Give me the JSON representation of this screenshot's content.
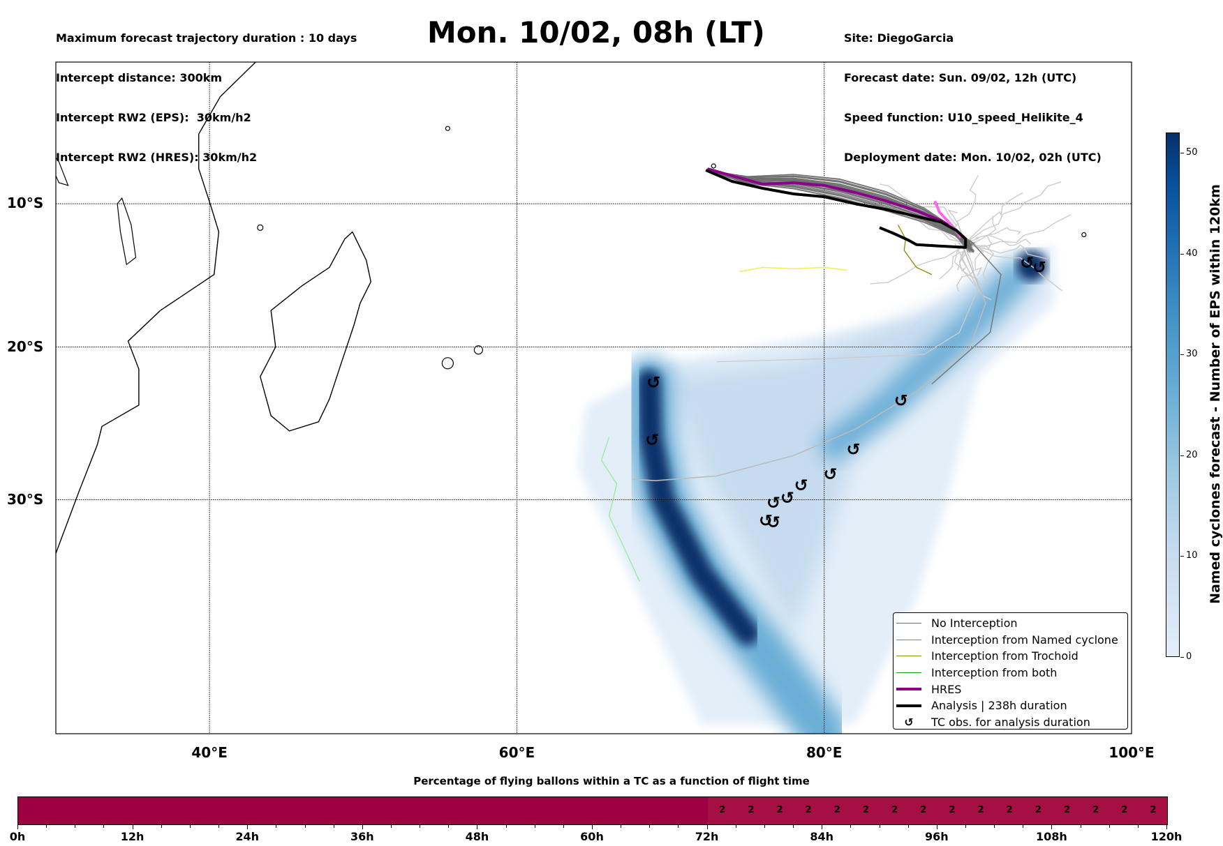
{
  "header": {
    "left_lines": [
      "Maximum forecast trajectory duration : 10 days",
      "Intercept distance: 300km",
      "Intercept RW2 (EPS):  30km/h2",
      "Intercept RW2 (HRES): 30km/h2"
    ],
    "title": "Mon. 10/02, 08h (LT)",
    "right_lines": [
      "Site: DiegoGarcia",
      "Forecast date: Sun. 09/02, 12h (UTC)",
      "Speed function: U10_speed_Helikite_4",
      "Deployment date: Mon. 10/02, 02h (UTC)"
    ]
  },
  "map": {
    "lon_range": [
      30,
      100
    ],
    "lat_range": [
      -43.5,
      0.2
    ],
    "lon_ticks": [
      {
        "value": 40,
        "label": "40°E"
      },
      {
        "value": 60,
        "label": "60°E"
      },
      {
        "value": 80,
        "label": "80°E"
      },
      {
        "value": 100,
        "label": "100°E"
      }
    ],
    "lat_ticks": [
      {
        "value": -10,
        "label": "10°S"
      },
      {
        "value": -20,
        "label": "20°S"
      },
      {
        "value": -30,
        "label": "30°S"
      }
    ],
    "colors": {
      "no_interception": "#6e6e6e",
      "named_cyclone": "#ff5a1f",
      "trochoid": "#8b8b00",
      "both": "#1a9e1a",
      "hres": "#8b008b",
      "hres_tail": "#ff66ee",
      "analysis": "#000000",
      "faint_tracks": "#cccccc",
      "yellow_track": "#eeee55",
      "green_track": "#99ee99"
    },
    "tc_obs": [
      {
        "lon": 68.9,
        "lat": -22.4
      },
      {
        "lon": 68.8,
        "lat": -26.2
      },
      {
        "lon": 76.2,
        "lat": -31.3
      },
      {
        "lon": 76.7,
        "lat": -31.4
      },
      {
        "lon": 76.7,
        "lat": -30.2
      },
      {
        "lon": 77.6,
        "lat": -29.9
      },
      {
        "lon": 78.5,
        "lat": -29.1
      },
      {
        "lon": 80.4,
        "lat": -28.4
      },
      {
        "lon": 81.9,
        "lat": -26.8
      },
      {
        "lon": 85.0,
        "lat": -23.6
      },
      {
        "lon": 93.2,
        "lat": -14.2
      },
      {
        "lon": 94.0,
        "lat": -14.5
      }
    ],
    "analysis_track": [
      [
        72.3,
        -7.6
      ],
      [
        74,
        -8.4
      ],
      [
        76,
        -8.9
      ],
      [
        78,
        -9.3
      ],
      [
        80,
        -9.5
      ],
      [
        82,
        -10
      ],
      [
        84,
        -10.4
      ],
      [
        86,
        -10.9
      ],
      [
        87.6,
        -11.3
      ],
      [
        88.6,
        -11.9
      ],
      [
        89.2,
        -12.5
      ],
      [
        89.2,
        -13.1
      ],
      [
        87.5,
        -13
      ],
      [
        86,
        -12.9
      ],
      [
        85.5,
        -12.6
      ],
      [
        84.5,
        -12.1
      ],
      [
        83.6,
        -11.7
      ]
    ],
    "hres_track": [
      [
        72.4,
        -7.5
      ],
      [
        74,
        -8
      ],
      [
        76,
        -8.6
      ],
      [
        78,
        -8.5
      ],
      [
        80,
        -8.7
      ],
      [
        82,
        -9.2
      ],
      [
        84,
        -9.8
      ],
      [
        86,
        -10.5
      ],
      [
        87.6,
        -11.2
      ],
      [
        88.5,
        -11.8
      ],
      [
        89,
        -12.3
      ]
    ],
    "hres_tail": [
      [
        87.2,
        -9.8
      ],
      [
        87.5,
        -10.6
      ],
      [
        88.1,
        -11.3
      ],
      [
        88.5,
        -11.8
      ],
      [
        88.9,
        -12.4
      ]
    ],
    "legend": [
      {
        "label": "No Interception",
        "style": "no_interception"
      },
      {
        "label": "Interception from Named cyclone",
        "style": "named_cyclone"
      },
      {
        "label": "Interception from Trochoid",
        "style": "trochoid"
      },
      {
        "label": "Interception from both",
        "style": "both"
      },
      {
        "label": "HRES",
        "style": "hres"
      },
      {
        "label": "Analysis | 238h duration",
        "style": "analysis"
      },
      {
        "label": "TC obs. for analysis duration",
        "style": "tc_symbol",
        "symbol": "↺"
      }
    ],
    "colorbar": {
      "title": "Named cyclones forecast - Number of EPS within 120km",
      "min": 0,
      "max": 52,
      "ticks": [
        0,
        10,
        20,
        30,
        40,
        50
      ],
      "color_low": "#e3eef9",
      "color_high": "#08306b"
    }
  },
  "time_bar": {
    "title": "Percentage of flying ballons within a TC as a function of flight time",
    "max_hours": 120,
    "tick_labels": [
      "0h",
      "12h",
      "24h",
      "36h",
      "48h",
      "60h",
      "72h",
      "84h",
      "96h",
      "108h",
      "120h"
    ],
    "segments": [
      {
        "start": 0,
        "end": 72,
        "color": "#9e0142",
        "values": []
      },
      {
        "start": 72,
        "end": 120,
        "color": "#a50f43",
        "values": [
          "2",
          "2",
          "2",
          "2",
          "2",
          "2",
          "2",
          "2",
          "2",
          "2",
          "2",
          "2",
          "2",
          "2",
          "2",
          "2"
        ]
      }
    ]
  }
}
